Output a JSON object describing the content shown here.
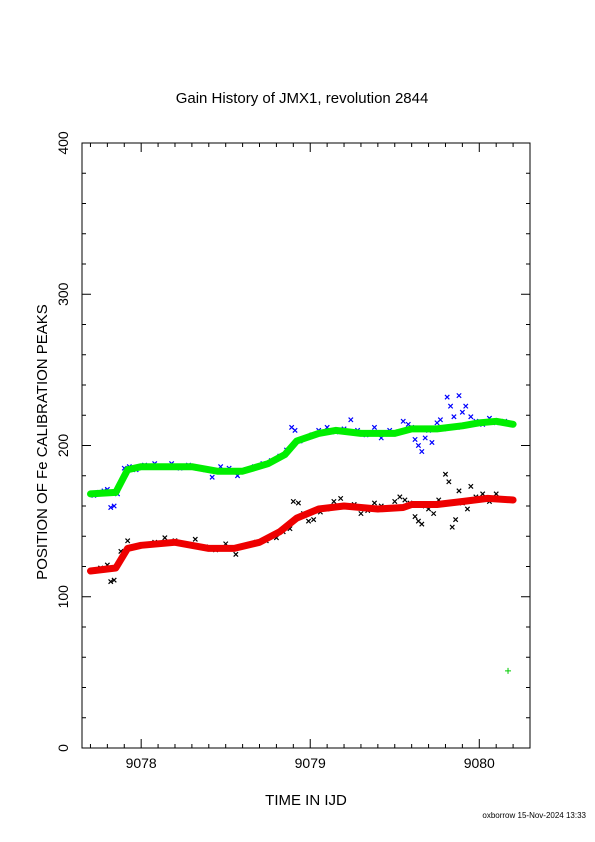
{
  "chart_data": {
    "type": "scatter",
    "title": "Gain History of JMX1, revolution 2844",
    "xlabel": "TIME IN IJD",
    "ylabel": "POSITION OF Fe CALIBRATION PEAKS",
    "xlim": [
      9077.65,
      9080.3
    ],
    "ylim": [
      0,
      400
    ],
    "x_ticks": [
      9078,
      9079,
      9080
    ],
    "y_ticks": [
      0,
      100,
      200,
      300,
      400
    ],
    "grid": false,
    "series": [
      {
        "color": "#0000ff",
        "marker": "x",
        "points": [
          [
            9077.72,
            167
          ],
          [
            9077.75,
            169
          ],
          [
            9077.78,
            170
          ],
          [
            9077.8,
            171
          ],
          [
            9077.82,
            159
          ],
          [
            9077.84,
            160
          ],
          [
            9077.86,
            168
          ],
          [
            9077.9,
            185
          ],
          [
            9077.93,
            186
          ],
          [
            9077.97,
            184
          ],
          [
            9078.02,
            187
          ],
          [
            9078.08,
            188
          ],
          [
            9078.13,
            186
          ],
          [
            9078.18,
            188
          ],
          [
            9078.23,
            185
          ],
          [
            9078.28,
            187
          ],
          [
            9078.33,
            185
          ],
          [
            9078.38,
            184
          ],
          [
            9078.42,
            179
          ],
          [
            9078.47,
            186
          ],
          [
            9078.52,
            185
          ],
          [
            9078.57,
            180
          ],
          [
            9078.62,
            184
          ],
          [
            9078.67,
            186
          ],
          [
            9078.72,
            188
          ],
          [
            9078.77,
            190
          ],
          [
            9078.82,
            193
          ],
          [
            9078.86,
            197
          ],
          [
            9078.89,
            212
          ],
          [
            9078.91,
            210
          ],
          [
            9078.94,
            203
          ],
          [
            9078.97,
            205
          ],
          [
            9079.01,
            207
          ],
          [
            9079.05,
            210
          ],
          [
            9079.1,
            212
          ],
          [
            9079.15,
            209
          ],
          [
            9079.2,
            211
          ],
          [
            9079.24,
            217
          ],
          [
            9079.28,
            210
          ],
          [
            9079.33,
            207
          ],
          [
            9079.38,
            212
          ],
          [
            9079.42,
            205
          ],
          [
            9079.47,
            210
          ],
          [
            9079.52,
            209
          ],
          [
            9079.55,
            216
          ],
          [
            9079.58,
            214
          ],
          [
            9079.6,
            212
          ],
          [
            9079.62,
            204
          ],
          [
            9079.64,
            200
          ],
          [
            9079.66,
            196
          ],
          [
            9079.68,
            205
          ],
          [
            9079.7,
            210
          ],
          [
            9079.72,
            202
          ],
          [
            9079.75,
            215
          ],
          [
            9079.77,
            217
          ],
          [
            9079.79,
            211
          ],
          [
            9079.81,
            232
          ],
          [
            9079.83,
            226
          ],
          [
            9079.85,
            219
          ],
          [
            9079.87,
            212
          ],
          [
            9079.88,
            233
          ],
          [
            9079.9,
            222
          ],
          [
            9079.92,
            226
          ],
          [
            9079.95,
            219
          ],
          [
            9079.98,
            216
          ],
          [
            9080.02,
            214
          ],
          [
            9080.06,
            218
          ],
          [
            9080.1,
            215
          ],
          [
            9080.15,
            216
          ]
        ]
      },
      {
        "color": "#00ee00",
        "marker": "line-fit",
        "points": [
          [
            9077.7,
            168
          ],
          [
            9077.85,
            169
          ],
          [
            9077.92,
            184
          ],
          [
            9078.0,
            186
          ],
          [
            9078.3,
            186
          ],
          [
            9078.45,
            183
          ],
          [
            9078.6,
            183
          ],
          [
            9078.75,
            188
          ],
          [
            9078.85,
            194
          ],
          [
            9078.92,
            203
          ],
          [
            9079.05,
            208
          ],
          [
            9079.15,
            210
          ],
          [
            9079.3,
            208
          ],
          [
            9079.5,
            208
          ],
          [
            9079.6,
            211
          ],
          [
            9079.75,
            211
          ],
          [
            9079.9,
            213
          ],
          [
            9080.0,
            215
          ],
          [
            9080.1,
            216
          ],
          [
            9080.2,
            214
          ]
        ]
      },
      {
        "color": "#000000",
        "marker": "x",
        "points": [
          [
            9077.72,
            117
          ],
          [
            9077.76,
            119
          ],
          [
            9077.8,
            121
          ],
          [
            9077.82,
            110
          ],
          [
            9077.84,
            111
          ],
          [
            9077.88,
            130
          ],
          [
            9077.92,
            137
          ],
          [
            9077.97,
            133
          ],
          [
            9078.02,
            134
          ],
          [
            9078.08,
            136
          ],
          [
            9078.14,
            139
          ],
          [
            9078.2,
            137
          ],
          [
            9078.26,
            135
          ],
          [
            9078.32,
            138
          ],
          [
            9078.38,
            133
          ],
          [
            9078.44,
            131
          ],
          [
            9078.5,
            135
          ],
          [
            9078.56,
            128
          ],
          [
            9078.62,
            134
          ],
          [
            9078.68,
            136
          ],
          [
            9078.74,
            137
          ],
          [
            9078.8,
            139
          ],
          [
            9078.84,
            143
          ],
          [
            9078.88,
            145
          ],
          [
            9078.9,
            163
          ],
          [
            9078.93,
            162
          ],
          [
            9078.96,
            155
          ],
          [
            9078.99,
            150
          ],
          [
            9079.02,
            151
          ],
          [
            9079.06,
            156
          ],
          [
            9079.1,
            158
          ],
          [
            9079.14,
            163
          ],
          [
            9079.18,
            165
          ],
          [
            9079.22,
            160
          ],
          [
            9079.26,
            161
          ],
          [
            9079.3,
            155
          ],
          [
            9079.34,
            157
          ],
          [
            9079.38,
            162
          ],
          [
            9079.42,
            160
          ],
          [
            9079.46,
            158
          ],
          [
            9079.5,
            163
          ],
          [
            9079.53,
            166
          ],
          [
            9079.56,
            164
          ],
          [
            9079.59,
            162
          ],
          [
            9079.62,
            153
          ],
          [
            9079.64,
            150
          ],
          [
            9079.66,
            148
          ],
          [
            9079.68,
            160
          ],
          [
            9079.7,
            158
          ],
          [
            9079.73,
            155
          ],
          [
            9079.76,
            164
          ],
          [
            9079.78,
            161
          ],
          [
            9079.8,
            181
          ],
          [
            9079.82,
            176
          ],
          [
            9079.84,
            146
          ],
          [
            9079.86,
            151
          ],
          [
            9079.88,
            170
          ],
          [
            9079.9,
            162
          ],
          [
            9079.93,
            158
          ],
          [
            9079.95,
            173
          ],
          [
            9079.98,
            166
          ],
          [
            9080.02,
            168
          ],
          [
            9080.06,
            163
          ],
          [
            9080.1,
            168
          ],
          [
            9080.15,
            164
          ]
        ]
      },
      {
        "color": "#ee0000",
        "marker": "line-fit",
        "points": [
          [
            9077.7,
            117
          ],
          [
            9077.85,
            119
          ],
          [
            9077.92,
            132
          ],
          [
            9078.0,
            134
          ],
          [
            9078.2,
            136
          ],
          [
            9078.4,
            132
          ],
          [
            9078.55,
            132
          ],
          [
            9078.7,
            136
          ],
          [
            9078.82,
            143
          ],
          [
            9078.92,
            152
          ],
          [
            9079.05,
            158
          ],
          [
            9079.2,
            160
          ],
          [
            9079.4,
            158
          ],
          [
            9079.55,
            159
          ],
          [
            9079.6,
            161
          ],
          [
            9079.75,
            161
          ],
          [
            9079.9,
            163
          ],
          [
            9080.05,
            165
          ],
          [
            9080.2,
            164
          ]
        ]
      },
      {
        "color": "#00cc00",
        "marker": "plus",
        "points": [
          [
            9080.17,
            51
          ]
        ]
      }
    ],
    "footer": "oxborrow 15-Nov-2024 13:33"
  }
}
